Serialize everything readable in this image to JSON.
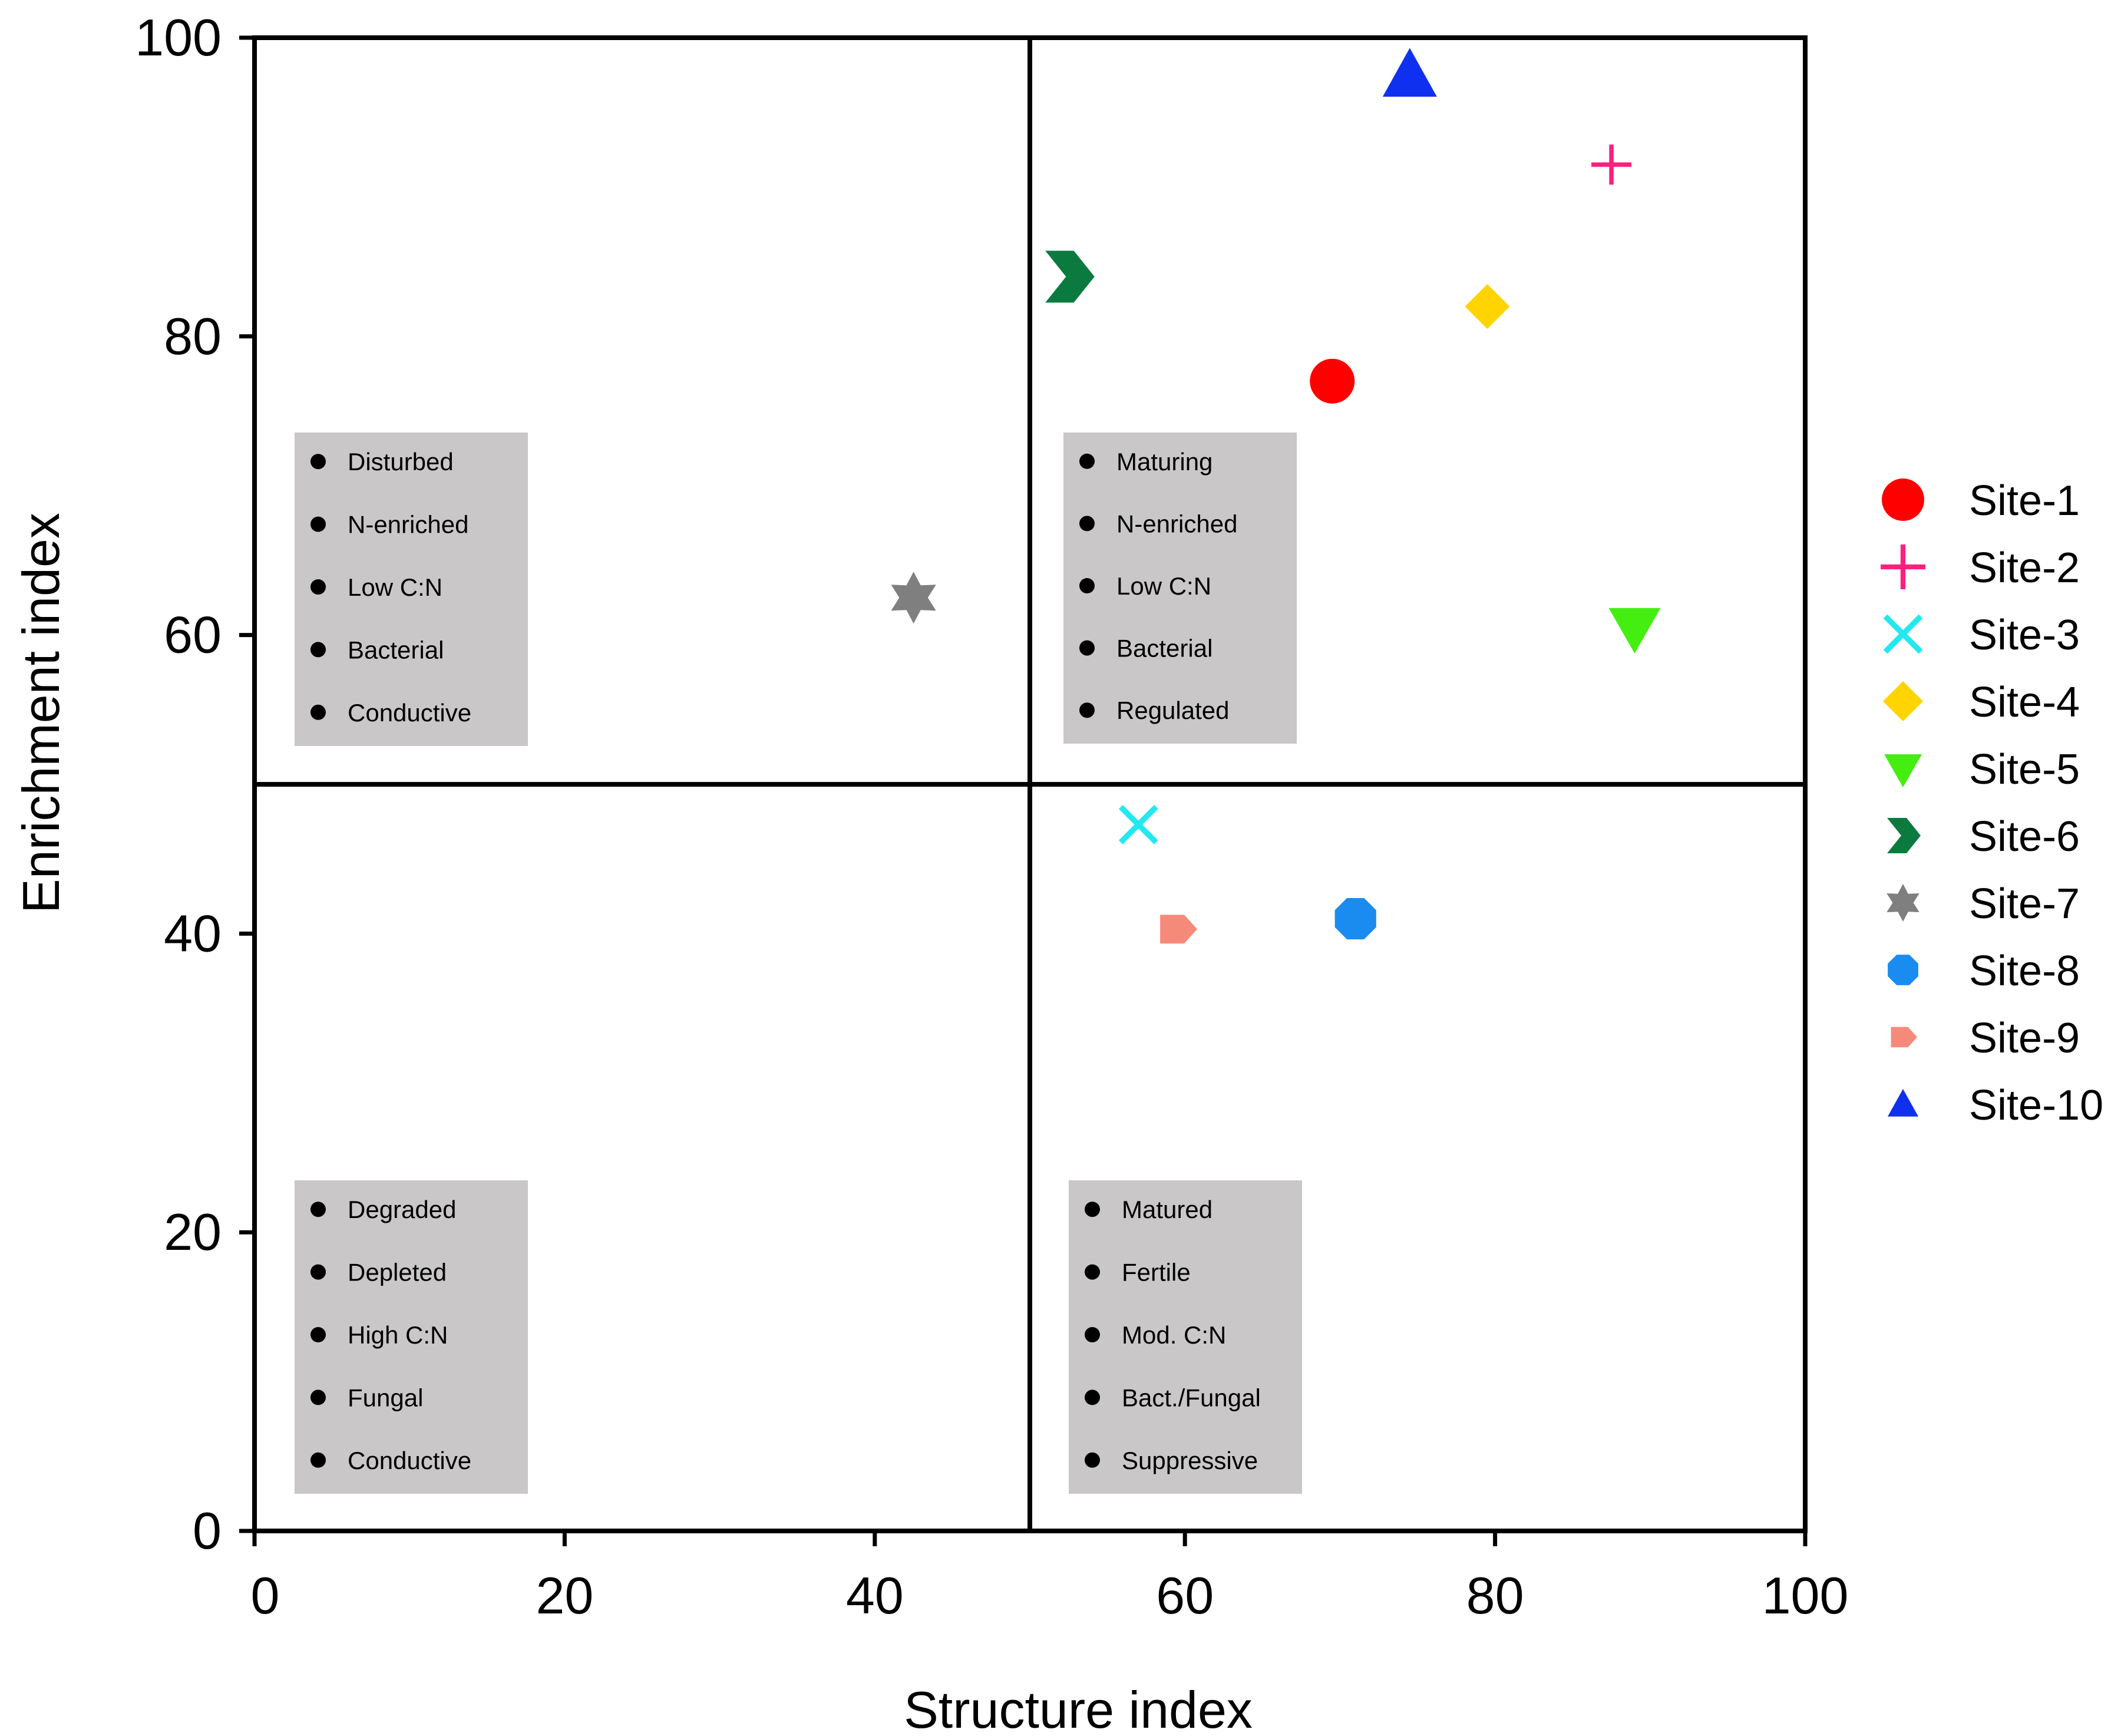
{
  "chart_data": {
    "type": "scatter",
    "title": "",
    "xlabel": "Structure index",
    "ylabel": "Enrichment index",
    "xlim": [
      0,
      100
    ],
    "ylim": [
      0,
      100
    ],
    "xticks": [
      "0",
      "20",
      "40",
      "60",
      "80",
      "100"
    ],
    "yticks": [
      "0",
      "20",
      "40",
      "60",
      "80",
      "100"
    ],
    "quadrant_dividers": {
      "x": 50,
      "y": 50
    },
    "legend_position": "right",
    "series": [
      {
        "name": "Site-1",
        "x": 69.5,
        "y": 77.0,
        "marker": "circle",
        "color": "#ff0000"
      },
      {
        "name": "Site-2",
        "x": 87.5,
        "y": 91.5,
        "marker": "plus",
        "color": "#ff1f7f"
      },
      {
        "name": "Site-3",
        "x": 57.0,
        "y": 47.3,
        "marker": "x",
        "color": "#22e8f0"
      },
      {
        "name": "Site-4",
        "x": 79.5,
        "y": 82.0,
        "marker": "diamond",
        "color": "#ffd400"
      },
      {
        "name": "Site-5",
        "x": 89.0,
        "y": 60.5,
        "marker": "triangle-down",
        "color": "#44ee11"
      },
      {
        "name": "Site-6",
        "x": 52.5,
        "y": 84.0,
        "marker": "chevron",
        "color": "#0b7a3e"
      },
      {
        "name": "Site-7",
        "x": 42.5,
        "y": 62.5,
        "marker": "star6",
        "color": "#7f7f7f"
      },
      {
        "name": "Site-8",
        "x": 71.0,
        "y": 41.0,
        "marker": "octagon",
        "color": "#1a8cf0"
      },
      {
        "name": "Site-9",
        "x": 59.5,
        "y": 40.3,
        "marker": "pentagon-right",
        "color": "#f68a7a"
      },
      {
        "name": "Site-10",
        "x": 74.5,
        "y": 97.5,
        "marker": "triangle-up",
        "color": "#1030f0"
      }
    ],
    "annotations": [
      {
        "quadrant": "upper-left",
        "items": [
          "Disturbed",
          "N-enriched",
          "Low C:N",
          "Bacterial",
          "Conductive"
        ]
      },
      {
        "quadrant": "upper-right",
        "items": [
          "Maturing",
          "N-enriched",
          "Low C:N",
          "Bacterial",
          "Regulated"
        ]
      },
      {
        "quadrant": "lower-left",
        "items": [
          "Degraded",
          "Depleted",
          "High C:N",
          "Fungal",
          "Conductive"
        ]
      },
      {
        "quadrant": "lower-right",
        "items": [
          "Matured",
          "Fertile",
          "Mod. C:N",
          "Bact./Fungal",
          "Suppressive"
        ]
      }
    ]
  }
}
